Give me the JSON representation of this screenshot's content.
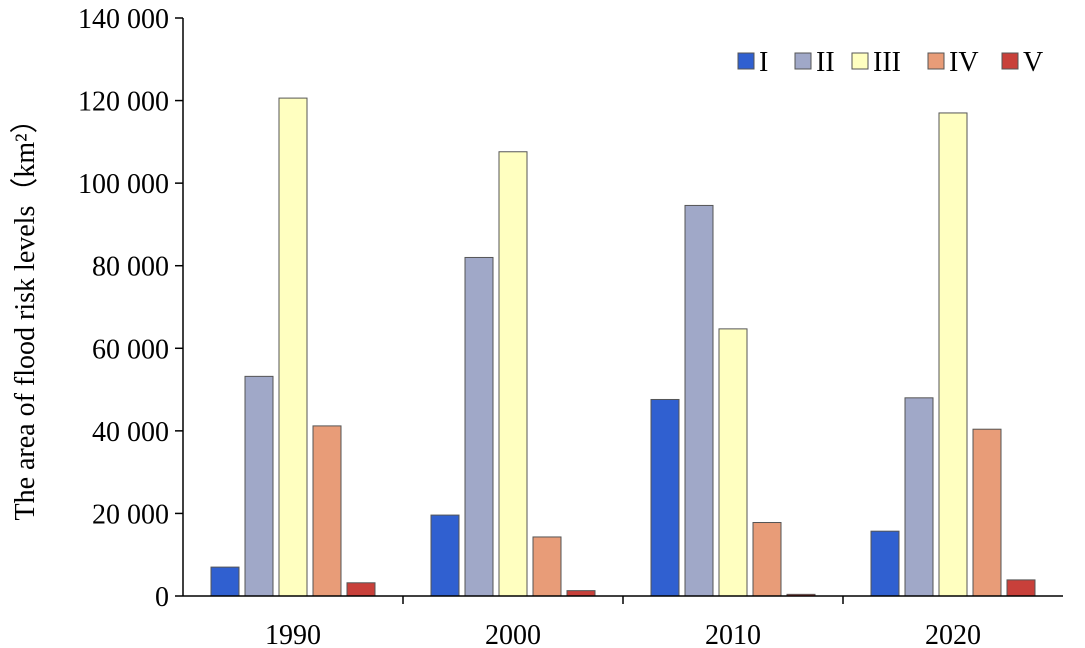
{
  "chart_data": {
    "type": "bar",
    "title": "",
    "xlabel": "",
    "ylabel": "The area of flood risk levels（km²）",
    "categories": [
      "1990",
      "2000",
      "2010",
      "2020"
    ],
    "ylim": [
      0,
      140000
    ],
    "yticks": [
      0,
      20000,
      40000,
      60000,
      80000,
      100000,
      120000,
      140000
    ],
    "ytick_labels": [
      "0",
      "20 000",
      "40 000",
      "60 000",
      "80 000",
      "100 000",
      "120 000",
      "140 000"
    ],
    "grid": false,
    "legend_position": "top-right",
    "series": [
      {
        "name": "I",
        "color": "#3060d0",
        "values": [
          7000,
          19600,
          47600,
          15700
        ]
      },
      {
        "name": "II",
        "color": "#a0a8c8",
        "values": [
          53200,
          82000,
          94600,
          48000
        ]
      },
      {
        "name": "III",
        "color": "#ffffc0",
        "values": [
          120600,
          107600,
          64700,
          117000
        ]
      },
      {
        "name": "IV",
        "color": "#e89c78",
        "values": [
          41200,
          14300,
          17800,
          40400
        ]
      },
      {
        "name": "V",
        "color": "#c8403a",
        "values": [
          3200,
          1300,
          400,
          3900
        ]
      }
    ]
  }
}
